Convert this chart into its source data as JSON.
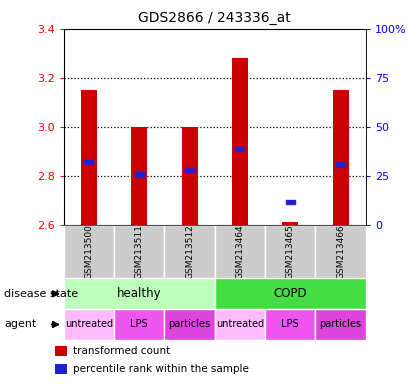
{
  "title": "GDS2866 / 243336_at",
  "samples": [
    "GSM213500",
    "GSM213511",
    "GSM213512",
    "GSM213464",
    "GSM213465",
    "GSM213466"
  ],
  "bar_bottom": 2.6,
  "bar_tops": [
    3.15,
    3.0,
    3.0,
    3.28,
    2.61,
    3.15
  ],
  "percentile_values": [
    2.855,
    2.805,
    2.822,
    2.91,
    2.693,
    2.845
  ],
  "ylim": [
    2.6,
    3.4
  ],
  "y_ticks_left": [
    2.6,
    2.8,
    3.0,
    3.2,
    3.4
  ],
  "y_ticks_right": [
    0,
    25,
    50,
    75,
    100
  ],
  "dotted_lines": [
    2.8,
    3.0,
    3.2
  ],
  "bar_color": "#cc0000",
  "percentile_color": "#2222cc",
  "disease_state": [
    {
      "label": "healthy",
      "span": [
        0,
        3
      ],
      "color": "#bbffbb"
    },
    {
      "label": "COPD",
      "span": [
        3,
        6
      ],
      "color": "#44dd44"
    }
  ],
  "agent": [
    {
      "label": "untreated",
      "span": [
        0,
        1
      ],
      "color": "#ffbbff"
    },
    {
      "label": "LPS",
      "span": [
        1,
        2
      ],
      "color": "#ee55ee"
    },
    {
      "label": "particles",
      "span": [
        2,
        3
      ],
      "color": "#dd44dd"
    },
    {
      "label": "untreated",
      "span": [
        3,
        4
      ],
      "color": "#ffbbff"
    },
    {
      "label": "LPS",
      "span": [
        4,
        5
      ],
      "color": "#ee55ee"
    },
    {
      "label": "particles",
      "span": [
        5,
        6
      ],
      "color": "#dd44dd"
    }
  ],
  "legend_items": [
    {
      "label": "transformed count",
      "color": "#cc0000"
    },
    {
      "label": "percentile rank within the sample",
      "color": "#2222cc"
    }
  ],
  "bar_width": 0.32,
  "sample_bg": "#cccccc"
}
